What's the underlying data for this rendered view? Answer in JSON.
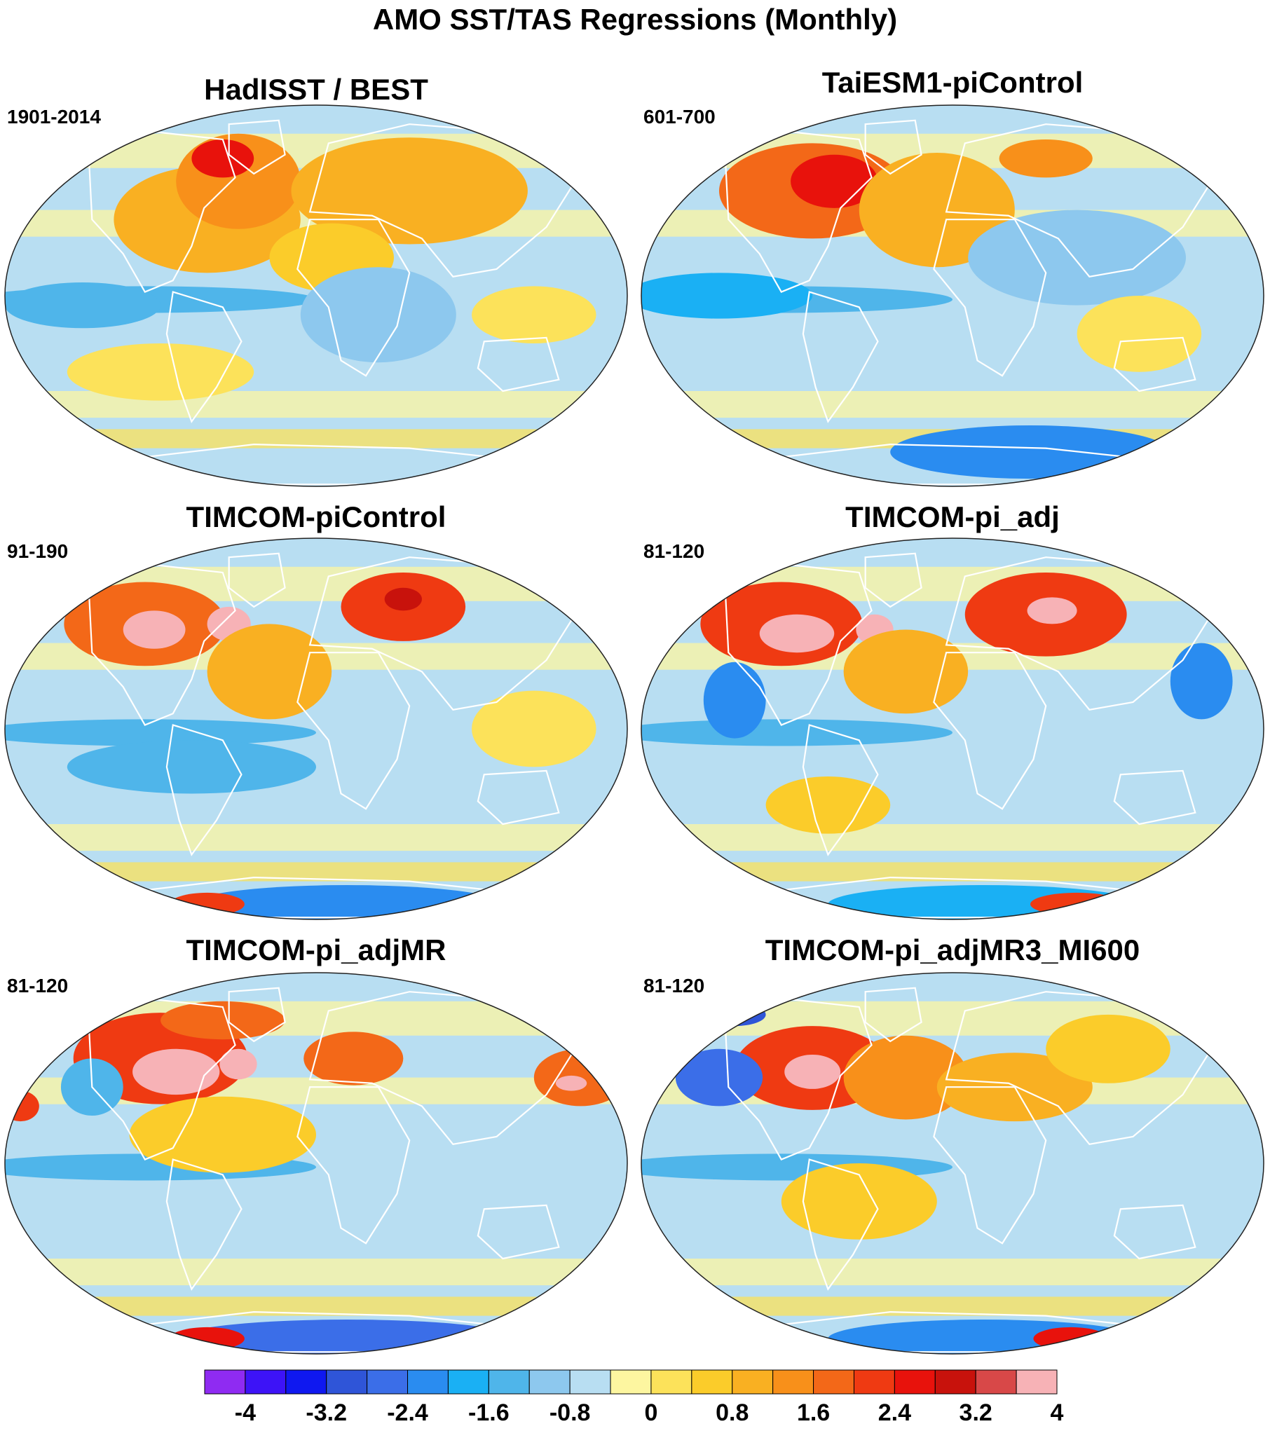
{
  "figure": {
    "title": "AMO SST/TAS Regressions (Monthly)"
  },
  "panels": [
    {
      "title": "HadISST / BEST",
      "period": "1901-2014",
      "style": "obs"
    },
    {
      "title": "TaiESM1-piControl",
      "period": "601-700",
      "style": "taiesm"
    },
    {
      "title": "TIMCOM-piControl",
      "period": "91-190",
      "style": "timcom"
    },
    {
      "title": "TIMCOM-pi_adj",
      "period": "81-120",
      "style": "adj"
    },
    {
      "title": "TIMCOM-pi_adjMR",
      "period": "81-120",
      "style": "adjmr"
    },
    {
      "title": "TIMCOM-pi_adjMR3_MI600",
      "period": "81-120",
      "style": "adjmr3"
    }
  ],
  "colorbar": {
    "colors": [
      "#8f2bf2",
      "#3d13f7",
      "#0f18f0",
      "#2f55d8",
      "#3b6ee8",
      "#2a8cf0",
      "#1ab0f4",
      "#4fb5ea",
      "#8dc8ee",
      "#b8def2",
      "#fdf6a0",
      "#fce25a",
      "#fbcc2a",
      "#f9b022",
      "#f8901a",
      "#f36818",
      "#ef3a12",
      "#e8120c",
      "#c8120c",
      "#d84848",
      "#f7b2b6"
    ],
    "tick_labels": [
      "-4",
      "-3.2",
      "-2.4",
      "-1.6",
      "-0.8",
      "0",
      "0.8",
      "1.6",
      "2.4",
      "3.2",
      "4"
    ]
  },
  "colors": {
    "ocean_background": "#b8def2",
    "map_border": "#222222",
    "coastline": "#ffffff"
  }
}
